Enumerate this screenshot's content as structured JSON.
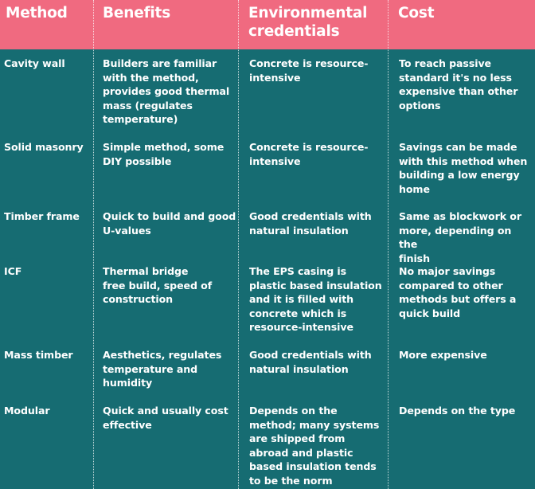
{
  "header": {
    "method": "Method",
    "benefits": "Benefits",
    "environmental": "Environmental\ncredentials",
    "cost": "Cost"
  },
  "rows": [
    {
      "method": "Cavity wall",
      "benefits": "Builders are familiar\nwith the method,\nprovides good thermal\nmass (regulates\ntemperature)",
      "environmental": "Concrete is resource-\nintensive",
      "cost": "To reach passive\nstandard it's no less\nexpensive than other\noptions"
    },
    {
      "method": "Solid masonry",
      "benefits": "Simple method, some\nDIY possible",
      "environmental": "Concrete is resource-\nintensive",
      "cost": "Savings can be made\nwith this method when\nbuilding a low energy\nhome"
    },
    {
      "method": "Timber frame",
      "benefits": "Quick to build and good\nU-values",
      "environmental": "Good credentials with\nnatural insulation",
      "cost": "Same as blockwork or\nmore, depending on the\nfinish"
    },
    {
      "method": "ICF",
      "benefits": "Thermal bridge\nfree build, speed of\nconstruction",
      "environmental": "The EPS casing is\nplastic based insulation\nand it is filled with\nconcrete which is\nresource-intensive",
      "cost": "No major savings\ncompared to other\nmethods but offers a\nquick build"
    },
    {
      "method": "Mass timber",
      "benefits": "Aesthetics, regulates\ntemperature and\nhumidity",
      "environmental": "Good credentials with\nnatural insulation",
      "cost": "More expensive"
    },
    {
      "method": "Modular",
      "benefits": "Quick and usually cost\neffective",
      "environmental": "Depends on the\nmethod; many systems\nare shipped from\nabroad and plastic\nbased insulation tends\nto be the norm",
      "cost": "Depends on the type"
    }
  ],
  "colors": {
    "header_bg": "#f06a80",
    "body_bg": "#166c72",
    "text": "#ffffff"
  }
}
